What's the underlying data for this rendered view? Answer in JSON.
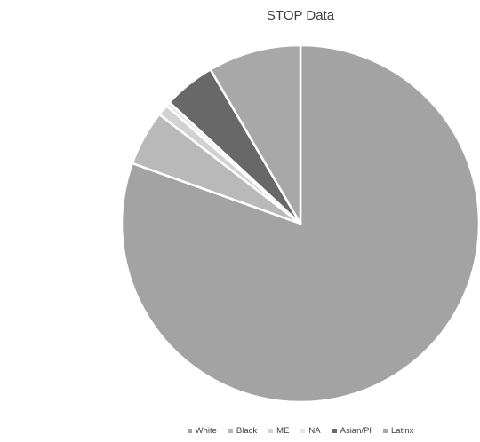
{
  "chart_data": {
    "type": "pie",
    "title": "STOP Data",
    "categories": [
      "White",
      "Black",
      "ME",
      "NA",
      "Asian/PI",
      "Latinx"
    ],
    "values": [
      80.5,
      5.0,
      1.0,
      0.4,
      4.7,
      8.4
    ],
    "colors": [
      "#a3a3a3",
      "#b9b9b9",
      "#d2d2d2",
      "#e7e7e7",
      "#686868",
      "#a8a8a8"
    ],
    "legend_position": "bottom"
  }
}
